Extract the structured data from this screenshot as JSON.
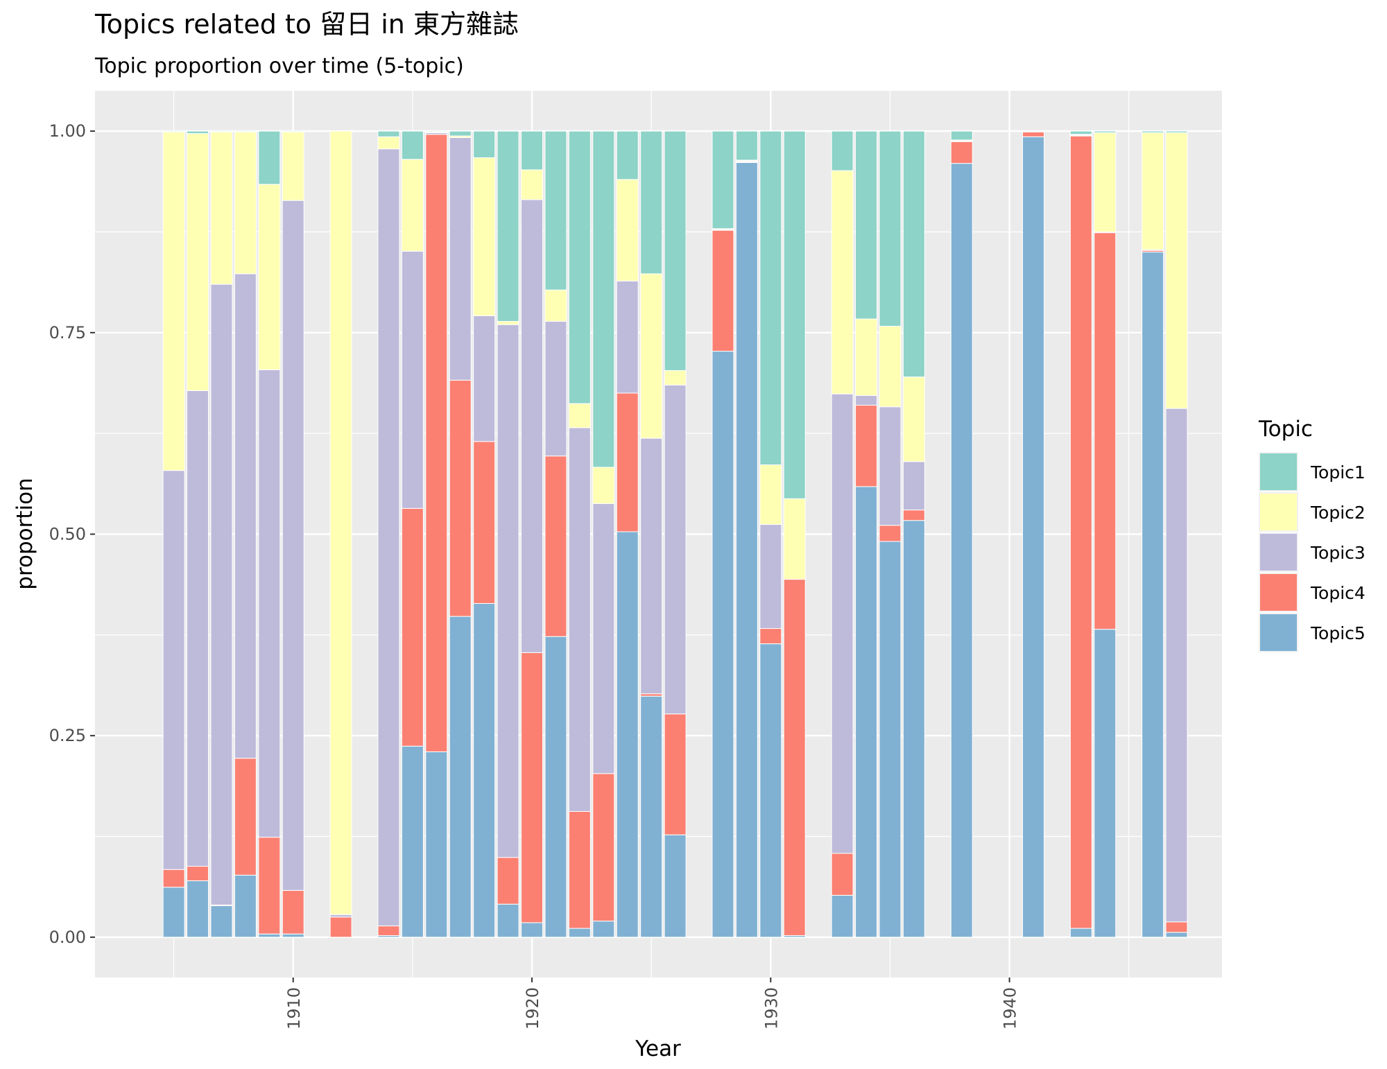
{
  "chart_data": {
    "type": "bar",
    "stacked": true,
    "title": "Topics related to 留日 in 東方雜誌",
    "subtitle": "Topic proportion over time (5-topic)",
    "xlabel": "Year",
    "ylabel": "proportion",
    "xlim": [
      1901.7,
      1948.9
    ],
    "ylim": [
      -0.05,
      1.05
    ],
    "x_ticks": [
      1910,
      1920,
      1930,
      1940
    ],
    "y_ticks": [
      0.0,
      0.25,
      0.5,
      0.75,
      1.0
    ],
    "y_tick_labels": [
      "0.00",
      "0.25",
      "0.50",
      "0.75",
      "1.00"
    ],
    "grid": true,
    "legend": {
      "title": "Topic",
      "position": "right"
    },
    "stack_order_bottom_to_top": [
      "Topic5",
      "Topic4",
      "Topic3",
      "Topic2",
      "Topic1"
    ],
    "series": [
      {
        "name": "Topic1",
        "color": "#8dd3c7"
      },
      {
        "name": "Topic2",
        "color": "#ffffb3"
      },
      {
        "name": "Topic3",
        "color": "#bebada"
      },
      {
        "name": "Topic4",
        "color": "#fb8072"
      },
      {
        "name": "Topic5",
        "color": "#80b1d3"
      }
    ],
    "bars": [
      {
        "year": 1905,
        "Topic1": 0.001,
        "Topic2": 0.42,
        "Topic3": 0.495,
        "Topic4": 0.022,
        "Topic5": 0.062
      },
      {
        "year": 1906,
        "Topic1": 0.003,
        "Topic2": 0.319,
        "Topic3": 0.59,
        "Topic4": 0.018,
        "Topic5": 0.07
      },
      {
        "year": 1907,
        "Topic1": 0.001,
        "Topic2": 0.189,
        "Topic3": 0.77,
        "Topic4": 0.001,
        "Topic5": 0.039
      },
      {
        "year": 1908,
        "Topic1": 0.001,
        "Topic2": 0.176,
        "Topic3": 0.601,
        "Topic4": 0.145,
        "Topic5": 0.077
      },
      {
        "year": 1909,
        "Topic1": 0.066,
        "Topic2": 0.23,
        "Topic3": 0.58,
        "Topic4": 0.12,
        "Topic5": 0.004
      },
      {
        "year": 1910,
        "Topic1": 0.001,
        "Topic2": 0.085,
        "Topic3": 0.856,
        "Topic4": 0.054,
        "Topic5": 0.004
      },
      {
        "year": 1912,
        "Topic1": 0.0,
        "Topic2": 0.972,
        "Topic3": 0.003,
        "Topic4": 0.025,
        "Topic5": 0.0
      },
      {
        "year": 1914,
        "Topic1": 0.007,
        "Topic2": 0.015,
        "Topic3": 0.964,
        "Topic4": 0.012,
        "Topic5": 0.002
      },
      {
        "year": 1915,
        "Topic1": 0.035,
        "Topic2": 0.114,
        "Topic3": 0.319,
        "Topic4": 0.295,
        "Topic5": 0.237
      },
      {
        "year": 1916,
        "Topic1": 0.001,
        "Topic2": 0.001,
        "Topic3": 0.002,
        "Topic4": 0.766,
        "Topic5": 0.23
      },
      {
        "year": 1917,
        "Topic1": 0.006,
        "Topic2": 0.002,
        "Topic3": 0.301,
        "Topic4": 0.293,
        "Topic5": 0.398
      },
      {
        "year": 1918,
        "Topic1": 0.033,
        "Topic2": 0.196,
        "Topic3": 0.156,
        "Topic4": 0.201,
        "Topic5": 0.414
      },
      {
        "year": 1919,
        "Topic1": 0.236,
        "Topic2": 0.004,
        "Topic3": 0.661,
        "Topic4": 0.058,
        "Topic5": 0.041
      },
      {
        "year": 1920,
        "Topic1": 0.048,
        "Topic2": 0.037,
        "Topic3": 0.562,
        "Topic4": 0.335,
        "Topic5": 0.018
      },
      {
        "year": 1921,
        "Topic1": 0.197,
        "Topic2": 0.039,
        "Topic3": 0.167,
        "Topic4": 0.224,
        "Topic5": 0.373
      },
      {
        "year": 1922,
        "Topic1": 0.338,
        "Topic2": 0.03,
        "Topic3": 0.476,
        "Topic4": 0.145,
        "Topic5": 0.011
      },
      {
        "year": 1923,
        "Topic1": 0.417,
        "Topic2": 0.045,
        "Topic3": 0.335,
        "Topic4": 0.183,
        "Topic5": 0.02
      },
      {
        "year": 1924,
        "Topic1": 0.06,
        "Topic2": 0.126,
        "Topic3": 0.139,
        "Topic4": 0.172,
        "Topic5": 0.503
      },
      {
        "year": 1925,
        "Topic1": 0.177,
        "Topic2": 0.204,
        "Topic3": 0.317,
        "Topic4": 0.003,
        "Topic5": 0.299
      },
      {
        "year": 1926,
        "Topic1": 0.297,
        "Topic2": 0.018,
        "Topic3": 0.408,
        "Topic4": 0.15,
        "Topic5": 0.127
      },
      {
        "year": 1928,
        "Topic1": 0.121,
        "Topic2": 0.001,
        "Topic3": 0.001,
        "Topic4": 0.15,
        "Topic5": 0.727
      },
      {
        "year": 1929,
        "Topic1": 0.036,
        "Topic2": 0.001,
        "Topic3": 0.001,
        "Topic4": 0.001,
        "Topic5": 0.961
      },
      {
        "year": 1930,
        "Topic1": 0.414,
        "Topic2": 0.074,
        "Topic3": 0.129,
        "Topic4": 0.019,
        "Topic5": 0.364
      },
      {
        "year": 1931,
        "Topic1": 0.456,
        "Topic2": 0.1,
        "Topic3": 0.0,
        "Topic4": 0.442,
        "Topic5": 0.002
      },
      {
        "year": 1933,
        "Topic1": 0.049,
        "Topic2": 0.277,
        "Topic3": 0.57,
        "Topic4": 0.052,
        "Topic5": 0.052
      },
      {
        "year": 1934,
        "Topic1": 0.233,
        "Topic2": 0.095,
        "Topic3": 0.012,
        "Topic4": 0.101,
        "Topic5": 0.559
      },
      {
        "year": 1935,
        "Topic1": 0.242,
        "Topic2": 0.1,
        "Topic3": 0.147,
        "Topic4": 0.02,
        "Topic5": 0.491
      },
      {
        "year": 1936,
        "Topic1": 0.305,
        "Topic2": 0.105,
        "Topic3": 0.06,
        "Topic4": 0.013,
        "Topic5": 0.517
      },
      {
        "year": 1938,
        "Topic1": 0.011,
        "Topic2": 0.001,
        "Topic3": 0.001,
        "Topic4": 0.027,
        "Topic5": 0.96
      },
      {
        "year": 1941,
        "Topic1": 0.0,
        "Topic2": 0.0,
        "Topic3": 0.001,
        "Topic4": 0.006,
        "Topic5": 0.993
      },
      {
        "year": 1943,
        "Topic1": 0.004,
        "Topic2": 0.001,
        "Topic3": 0.001,
        "Topic4": 0.983,
        "Topic5": 0.011
      },
      {
        "year": 1944,
        "Topic1": 0.002,
        "Topic2": 0.123,
        "Topic3": 0.001,
        "Topic4": 0.492,
        "Topic5": 0.382
      },
      {
        "year": 1946,
        "Topic1": 0.002,
        "Topic2": 0.145,
        "Topic3": 0.001,
        "Topic4": 0.002,
        "Topic5": 0.85
      },
      {
        "year": 1947,
        "Topic1": 0.002,
        "Topic2": 0.342,
        "Topic3": 0.637,
        "Topic4": 0.013,
        "Topic5": 0.006
      }
    ]
  }
}
